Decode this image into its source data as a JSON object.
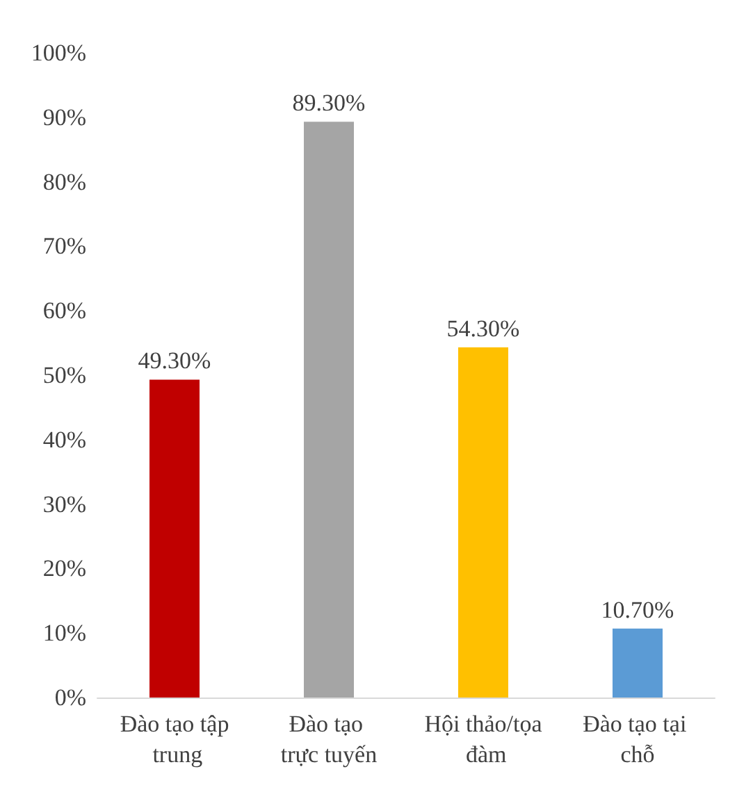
{
  "chart_data": {
    "type": "bar",
    "categories": [
      "Đào tạo tập trung",
      "Đào tạo trực tuyến",
      "Hội thảo/tọa đàm",
      "Đào tạo tại chỗ"
    ],
    "values": [
      49.3,
      89.3,
      54.3,
      10.7
    ],
    "colors": [
      "#c00000",
      "#a5a5a5",
      "#ffc000",
      "#5b9bd5"
    ],
    "value_labels": [
      "49.30%",
      "89.30%",
      "54.30%",
      "10.70%"
    ],
    "ylim": [
      0,
      100
    ],
    "yticks": [
      {
        "value": 0,
        "label": "0%"
      },
      {
        "value": 10,
        "label": "10%"
      },
      {
        "value": 20,
        "label": "20%"
      },
      {
        "value": 30,
        "label": "30%"
      },
      {
        "value": 40,
        "label": "40%"
      },
      {
        "value": 50,
        "label": "50%"
      },
      {
        "value": 60,
        "label": "60%"
      },
      {
        "value": 70,
        "label": "70%"
      },
      {
        "value": 80,
        "label": "80%"
      },
      {
        "value": 90,
        "label": "90%"
      },
      {
        "value": 100,
        "label": "100%"
      }
    ],
    "grid": false
  }
}
